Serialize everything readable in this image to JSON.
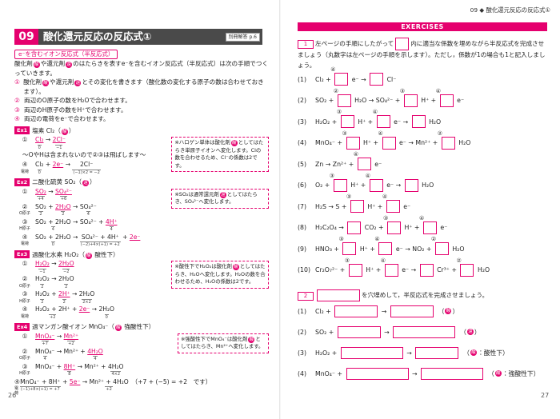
{
  "left": {
    "page_number": "26",
    "header": {
      "number": "09",
      "title": "酸化還元反応の反応式①",
      "ref": "別冊解答 p.6"
    },
    "section_label": "e⁻を含むイオン反応式（半反応式）",
    "intro": [
      "酸化剤",
      {
        "c": "酸"
      },
      "や還元剤",
      {
        "c": "還"
      },
      "のはたらきを表すe⁻を含むイオン反応式（半反応式）は次の手順でつくっていきます。"
    ],
    "steps": [
      {
        "n": "①",
        "text": [
          "酸化剤",
          {
            "c": "酸"
          },
          "や還元剤",
          {
            "c": "還"
          },
          "とその変化を書きます（酸化数の変化する原子の数は合わせておきます）。"
        ]
      },
      {
        "n": "②",
        "text": [
          "両辺のO原子の数をH₂Oで合わせます。"
        ]
      },
      {
        "n": "③",
        "text": [
          "両辺のH原子の数をH⁺で合わせます。"
        ]
      },
      {
        "n": "④",
        "text": [
          "両辺の電荷をe⁻で合わせます。"
        ]
      }
    ],
    "examples": [
      {
        "tag": "Ex1",
        "heading": [
          "塩素 Cl₂（",
          {
            "c": "酸"
          },
          "）"
        ],
        "rows": [
          {
            "n": "①",
            "eq": [
              {
                "t": "Cl₂",
                "u": "0",
                "hl": true
              },
              " → ",
              {
                "t": "2Cl⁻",
                "u": "−1",
                "hl": true
              }
            ]
          },
          {
            "text": "～OやHは含まれないので②③は飛ばします～"
          },
          {
            "n": "④",
            "lab": "電荷",
            "eq": [
              {
                "t": "Cl₂",
                "u": "0"
              },
              " + ",
              {
                "t": "2e⁻",
                "hl": true
              },
              " → ",
              {
                "t": "2Cl⁻",
                "u": "(−1)×2 = −2"
              }
            ]
          }
        ],
        "note": [
          "※ハロゲン単体は酸化剤",
          {
            "c": "酸"
          },
          "としてはたらき単原子イオンへ変化します。Clの数を合わせるため、Cl⁻の係数は2です。"
        ]
      },
      {
        "tag": "Ex2",
        "heading": [
          "二酸化硫黄 SO₂（",
          {
            "c": "還"
          },
          "）"
        ],
        "rows": [
          {
            "n": "①",
            "eq": [
              {
                "t": "SO₂",
                "u": "+4",
                "hl": true
              },
              " → ",
              {
                "t": "SO₄²⁻",
                "u": "+6",
                "hl": true
              }
            ]
          },
          {
            "n": "②",
            "lab": "O原子",
            "eq": [
              {
                "t": "SO₂",
                "u": "2"
              },
              " + ",
              {
                "t": "2H₂O",
                "u": "2",
                "hl": true
              },
              " → ",
              {
                "t": "SO₄²⁻",
                "u": "4"
              }
            ]
          },
          {
            "n": "③",
            "lab": "H原子",
            "eq": [
              {
                "t": "SO₂ + 2H₂O",
                "u": "4"
              },
              " → ",
              {
                "t": "SO₄²⁻"
              },
              " + ",
              {
                "t": "4H⁺",
                "u": "4",
                "hl": true
              }
            ]
          },
          {
            "n": "④",
            "lab": "電荷",
            "eq": [
              {
                "t": "SO₂ + 2H₂O",
                "u": "0"
              },
              " → ",
              {
                "t": "SO₄²⁻ + 4H⁺",
                "u": "(−2)+4×(+1) = +2"
              },
              " + ",
              {
                "t": "2e⁻",
                "hl": true
              }
            ]
          }
        ],
        "note": [
          "※SO₂は通常還元剤",
          {
            "c": "還"
          },
          "としてはたらき、SO₄²⁻へ変化します。"
        ]
      },
      {
        "tag": "Ex3",
        "heading": [
          "過酸化水素 H₂O₂（",
          {
            "c": "酸"
          },
          " 酸性下）"
        ],
        "rows": [
          {
            "n": "①",
            "eq": [
              {
                "t": "H₂O₂",
                "u": "−1",
                "hl": true
              },
              " → ",
              {
                "t": "2H₂O",
                "u": "−2",
                "hl": true
              }
            ]
          },
          {
            "n": "②",
            "lab": "O原子",
            "eq": [
              {
                "t": "H₂O₂",
                "u": "2"
              },
              " → ",
              {
                "t": "2H₂O",
                "u": "2"
              }
            ]
          },
          {
            "n": "③",
            "lab": "H原子",
            "eq": [
              {
                "t": "H₂O₂",
                "u": "2"
              },
              " + ",
              {
                "t": "2H⁺",
                "u": "2",
                "hl": true
              },
              " → ",
              {
                "t": "2H₂O",
                "u": "2×2"
              }
            ]
          },
          {
            "n": "④",
            "lab": "電荷",
            "eq": [
              {
                "t": "H₂O₂ + 2H⁺",
                "u": "+2"
              },
              " + ",
              {
                "t": "2e⁻",
                "hl": true
              },
              " → ",
              {
                "t": "2H₂O",
                "u": "0"
              }
            ]
          }
        ],
        "note": [
          "※酸性下でH₂O₂は酸化剤",
          {
            "c": "酸"
          },
          "としてはたらき、H₂Oへ変化します。H₂Oの数を合わせるため、H₂Oの係数は2です。"
        ]
      },
      {
        "tag": "Ex4",
        "heading": [
          "過マンガン酸イオン MnO₄⁻（",
          {
            "c": "酸"
          },
          " 強酸性下）"
        ],
        "rows": [
          {
            "n": "①",
            "eq": [
              {
                "t": "MnO₄⁻",
                "u": "+7",
                "hl": true
              },
              " → ",
              {
                "t": "Mn²⁺",
                "u": "+2",
                "hl": true
              }
            ]
          },
          {
            "n": "②",
            "lab": "O原子",
            "eq": [
              {
                "t": "MnO₄⁻",
                "u": "4"
              },
              " → Mn²⁺ + ",
              {
                "t": "4H₂O",
                "u": "4",
                "hl": true
              }
            ]
          },
          {
            "n": "③",
            "lab": "H原子",
            "eq": [
              "MnO₄⁻ + ",
              {
                "t": "8H⁺",
                "u": "8",
                "hl": true
              },
              " → Mn²⁺ + ",
              {
                "t": "4H₂O",
                "u": "4×2"
              }
            ]
          },
          {
            "n": "④",
            "lab": "電荷",
            "eq": [
              {
                "t": "MnO₄⁻ + 8H⁺",
                "u": "(−1)+8×(+1) = +7"
              },
              " + ",
              {
                "t": "5e⁻",
                "hl": true
              },
              " → ",
              {
                "t": "Mn²⁺ + 4H₂O",
                "u": "+2"
              },
              "　（+7 + (−5) = +2　です）"
            ]
          }
        ],
        "note": [
          "※強酸性下でMnO₄⁻は酸化剤",
          {
            "c": "酸"
          },
          "としてはたらき、Mn²⁺へ変化します。"
        ]
      }
    ]
  },
  "right": {
    "page_number": "27",
    "running_head": "09 ◆ 酸化還元反応の反応式①",
    "banner": "EXERCISES",
    "q1": {
      "num": "1",
      "text": [
        "左ページの手順にしたがって",
        {
          "kind": "box"
        },
        "内に適当な係数を埋めながら半反応式を完成させましょう（丸数字は左ページの手順を示します）。ただし，係数が1の場合も1と記入しましょう。"
      ],
      "items": [
        {
          "n": "(1)",
          "eq": [
            "Cl₂ + ",
            {
              "kind": "box",
              "step": "④"
            },
            " e⁻ → ",
            {
              "kind": "box"
            },
            " Cl⁻"
          ]
        },
        {
          "n": "(2)",
          "eq": [
            "SO₂ + ",
            {
              "kind": "box",
              "step": "②"
            },
            " H₂O → SO₄²⁻ + ",
            {
              "kind": "box",
              "step": "③"
            },
            " H⁺ + ",
            {
              "kind": "box",
              "step": "④"
            },
            " e⁻"
          ]
        },
        {
          "n": "(3)",
          "eq": [
            "H₂O₂ + ",
            {
              "kind": "box",
              "step": "③"
            },
            " H⁺ + ",
            {
              "kind": "box",
              "step": "④"
            },
            " e⁻ → ",
            {
              "kind": "box"
            },
            " H₂O"
          ]
        },
        {
          "n": "(4)",
          "eq": [
            "MnO₄⁻ + ",
            {
              "kind": "box",
              "step": "③"
            },
            " H⁺ + ",
            {
              "kind": "box",
              "step": "④"
            },
            " e⁻ → Mn²⁺ + ",
            {
              "kind": "box",
              "step": "②"
            },
            " H₂O"
          ]
        },
        {
          "n": "(5)",
          "eq": [
            "Zn → Zn²⁺ + ",
            {
              "kind": "box",
              "step": "④"
            },
            " e⁻"
          ]
        },
        {
          "n": "(6)",
          "eq": [
            "O₂ + ",
            {
              "kind": "box",
              "step": "③"
            },
            " H⁺ + ",
            {
              "kind": "box",
              "step": "④"
            },
            " e⁻ → ",
            {
              "kind": "box"
            },
            " H₂O"
          ]
        },
        {
          "n": "(7)",
          "eq": [
            "H₂S → S + ",
            {
              "kind": "box",
              "step": "③"
            },
            " H⁺ + ",
            {
              "kind": "box",
              "step": "④"
            },
            " e⁻"
          ]
        },
        {
          "n": "(8)",
          "eq": [
            "H₂C₂O₄ → ",
            {
              "kind": "box"
            },
            " CO₂ + ",
            {
              "kind": "box",
              "step": "③"
            },
            " H⁺ + ",
            {
              "kind": "box",
              "step": "④"
            },
            " e⁻"
          ]
        },
        {
          "n": "(9)",
          "eq": [
            "HNO₃ + ",
            {
              "kind": "box",
              "step": "③"
            },
            " H⁺ + ",
            {
              "kind": "box",
              "step": "④"
            },
            " e⁻ → NO₂ + ",
            {
              "kind": "box",
              "step": "②"
            },
            " H₂O"
          ]
        },
        {
          "n": "(10)",
          "eq": [
            "Cr₂O₇²⁻ + ",
            {
              "kind": "box",
              "step": "③"
            },
            " H⁺ + ",
            {
              "kind": "box",
              "step": "④"
            },
            " e⁻ → ",
            {
              "kind": "box"
            },
            " Cr³⁺ + ",
            {
              "kind": "box",
              "step": "②"
            },
            " H₂O"
          ]
        }
      ]
    },
    "q2": {
      "num": "2",
      "text": [
        {
          "kind": "field"
        },
        "を穴埋めして，半反応式を完成させましょう。"
      ],
      "items": [
        {
          "n": "(1)",
          "eq": [
            "Cl₂ + ",
            {
              "kind": "field"
            },
            " → ",
            {
              "kind": "field"
            },
            "　（",
            {
              "c": "酸"
            },
            "）"
          ]
        },
        {
          "n": "(2)",
          "eq": [
            "SO₂ + ",
            {
              "kind": "field"
            },
            " → ",
            {
              "kind": "wide"
            },
            "　（",
            {
              "c": "還"
            },
            "）"
          ]
        },
        {
          "n": "(3)",
          "eq": [
            "H₂O₂ + ",
            {
              "kind": "wide"
            },
            " → ",
            {
              "kind": "field"
            },
            "　（",
            {
              "c": "酸"
            },
            "：酸性下）"
          ]
        },
        {
          "n": "(4)",
          "eq": [
            "MnO₄⁻ + ",
            {
              "kind": "wide"
            },
            " → ",
            {
              "kind": "wide"
            },
            "　（",
            {
              "c": "酸"
            },
            "：強酸性下）"
          ]
        }
      ]
    }
  }
}
